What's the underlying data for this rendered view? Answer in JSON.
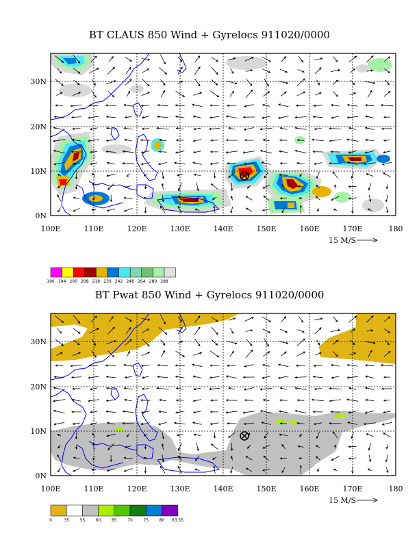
{
  "panels": [
    {
      "id": "claus",
      "title": "BT CLAUS 850 Wind + Gyrelocs 911020/0000",
      "x_ticks": [
        "100E",
        "110E",
        "120E",
        "130E",
        "140E",
        "150E",
        "160E",
        "170E",
        "180"
      ],
      "y_ticks": [
        "0N",
        "10N",
        "20N",
        "30N"
      ],
      "scale_label": "15 M/S",
      "colorbar_labels": [
        "190",
        "194",
        "200",
        "208",
        "218",
        "230",
        "242",
        "248",
        "264",
        "280",
        "288"
      ],
      "colorbar_colors": [
        "#ff00ff",
        "#ffff00",
        "#ff0000",
        "#a00000",
        "#e6b400",
        "#0078d7",
        "#50e8f0",
        "#80d8b0",
        "#70c070",
        "#a8f0a8",
        "#e0e0e0"
      ],
      "colors": {
        "coast": "#0000ff",
        "gyre_marker": "#000000"
      }
    },
    {
      "id": "pwat",
      "title": "BT Pwat 850 Wind + Gyrelocs 911020/0000",
      "x_ticks": [
        "100E",
        "110E",
        "120E",
        "130E",
        "140E",
        "150E",
        "160E",
        "170E",
        "180"
      ],
      "y_ticks": [
        "0N",
        "10N",
        "20N",
        "30N"
      ],
      "scale_label": "15 M/S",
      "colorbar_labels": [
        "0",
        "35",
        "55",
        "60",
        "65",
        "70",
        "75",
        "80",
        "63.55"
      ],
      "colorbar_colors": [
        "#e0b414",
        "#ffffff",
        "#c0c0c0",
        "#a8f000",
        "#50c800",
        "#108010",
        "#0080d0",
        "#8000c0"
      ],
      "colors": {
        "coast": "#0000ff",
        "gyre_marker": "#000000"
      }
    }
  ]
}
